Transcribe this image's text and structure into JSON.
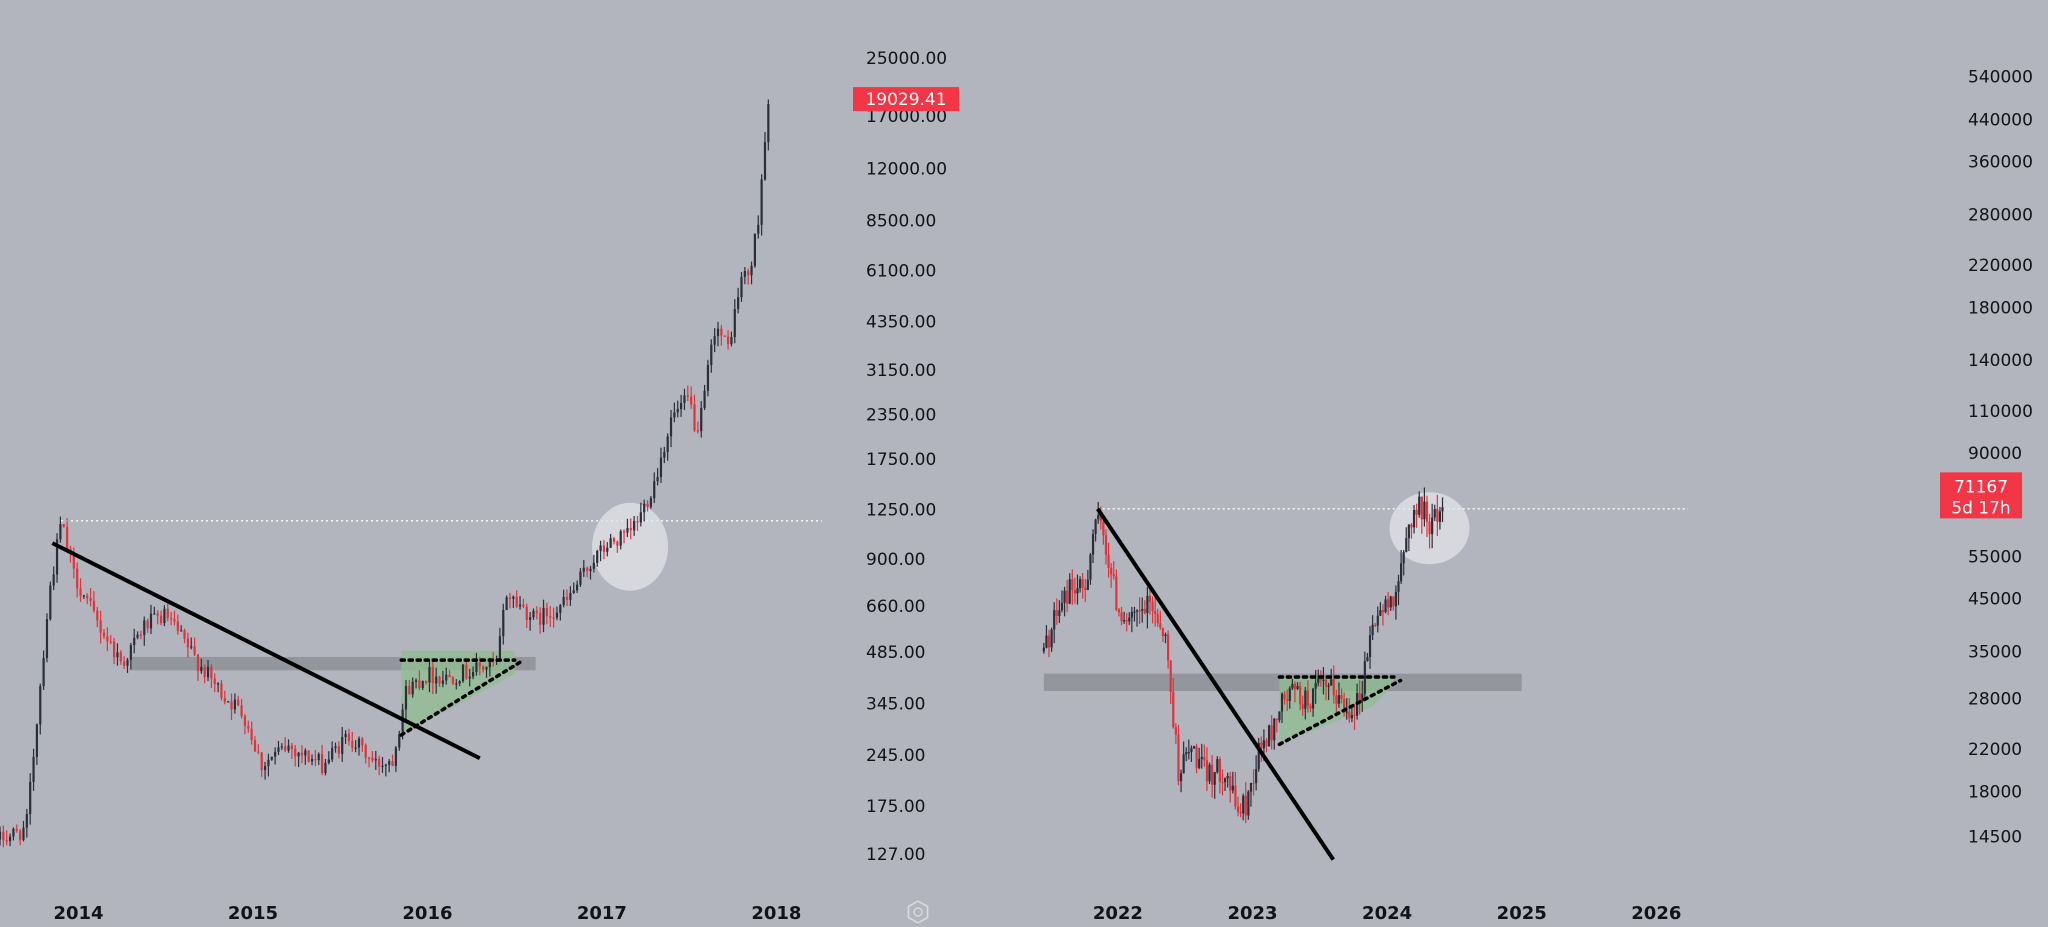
{
  "colors": {
    "background": "#b2b5be",
    "up_candle": "#2a2e39",
    "down_candle": "#e0333a",
    "price_tag": "#f23645",
    "pattern_fill": "#8fbf8f",
    "zone": "#8e9199",
    "highlight": "#e2e4e8"
  },
  "chart_data": [
    {
      "type": "candlestick",
      "scale": "log",
      "x_ticks": [
        "2014",
        "2015",
        "2016",
        "2017",
        "2018"
      ],
      "y_ticks": [
        "25000.00",
        "17000.00",
        "12000.00",
        "8500.00",
        "6100.00",
        "4350.00",
        "3150.00",
        "2350.00",
        "1750.00",
        "1250.00",
        "900.00",
        "660.00",
        "485.00",
        "345.00",
        "245.00",
        "175.00",
        "127.00"
      ],
      "last_price": "19029.41",
      "x_range": [
        2013.55,
        2018.25
      ],
      "y_range": [
        107,
        30500
      ],
      "prev_high": 1160,
      "zone": [
        430,
        470
      ],
      "anchors": [
        [
          2013.55,
          140
        ],
        [
          2013.7,
          150
        ],
        [
          2013.83,
          700
        ],
        [
          2013.9,
          1150
        ],
        [
          2013.97,
          820
        ],
        [
          2014.1,
          600
        ],
        [
          2014.25,
          450
        ],
        [
          2014.38,
          580
        ],
        [
          2014.5,
          620
        ],
        [
          2014.65,
          480
        ],
        [
          2014.8,
          380
        ],
        [
          2014.95,
          320
        ],
        [
          2015.05,
          230
        ],
        [
          2015.2,
          260
        ],
        [
          2015.4,
          230
        ],
        [
          2015.55,
          280
        ],
        [
          2015.7,
          230
        ],
        [
          2015.8,
          240
        ],
        [
          2015.88,
          380
        ],
        [
          2016.0,
          420
        ],
        [
          2016.1,
          410
        ],
        [
          2016.25,
          430
        ],
        [
          2016.4,
          450
        ],
        [
          2016.45,
          720
        ],
        [
          2016.55,
          650
        ],
        [
          2016.62,
          600
        ],
        [
          2016.8,
          680
        ],
        [
          2016.95,
          900
        ],
        [
          2017.05,
          1000
        ],
        [
          2017.15,
          1050
        ],
        [
          2017.22,
          1200
        ],
        [
          2017.3,
          1500
        ],
        [
          2017.4,
          2300
        ],
        [
          2017.5,
          2600
        ],
        [
          2017.55,
          2000
        ],
        [
          2017.65,
          4300
        ],
        [
          2017.72,
          3600
        ],
        [
          2017.8,
          5800
        ],
        [
          2017.85,
          6000
        ],
        [
          2017.9,
          9000
        ],
        [
          2017.93,
          14000
        ],
        [
          2017.96,
          19029
        ]
      ],
      "trendline": [
        [
          2013.85,
          1000
        ],
        [
          2016.3,
          240
        ]
      ],
      "triangle_top": [
        [
          2015.85,
          460
        ],
        [
          2016.5,
          460
        ]
      ],
      "triangle_bottom": [
        [
          2015.85,
          280
        ],
        [
          2016.55,
          460
        ]
      ],
      "pattern_points": [
        [
          2015.85,
          280
        ],
        [
          2015.85,
          490
        ],
        [
          2016.5,
          490
        ],
        [
          2016.5,
          420
        ]
      ],
      "highlight_center": [
        2017.15,
        1100
      ]
    },
    {
      "type": "candlestick",
      "scale": "log",
      "x_ticks": [
        "2022",
        "2023",
        "2024",
        "2025",
        "2026"
      ],
      "y_ticks": [
        "540000",
        "440000",
        "360000",
        "280000",
        "220000",
        "180000",
        "140000",
        "110000",
        "90000",
        "55000",
        "45000",
        "35000",
        "28000",
        "22000",
        "18000",
        "14500"
      ],
      "last_price": "71167",
      "countdown": "5d 17h",
      "x_range": [
        2021.05,
        2026.25
      ],
      "y_range": [
        11800,
        680000
      ],
      "prev_high": 69000,
      "zone": [
        29000,
        31500
      ],
      "anchors": [
        [
          2021.45,
          35000
        ],
        [
          2021.55,
          42000
        ],
        [
          2021.65,
          48000
        ],
        [
          2021.75,
          46000
        ],
        [
          2021.83,
          66000
        ],
        [
          2021.9,
          60000
        ],
        [
          2022.0,
          43000
        ],
        [
          2022.1,
          40000
        ],
        [
          2022.25,
          44000
        ],
        [
          2022.35,
          38000
        ],
        [
          2022.45,
          20000
        ],
        [
          2022.55,
          22000
        ],
        [
          2022.65,
          19500
        ],
        [
          2022.8,
          20000
        ],
        [
          2022.88,
          16500
        ],
        [
          2022.95,
          16800
        ],
        [
          2023.05,
          22000
        ],
        [
          2023.15,
          24000
        ],
        [
          2023.2,
          27000
        ],
        [
          2023.3,
          29000
        ],
        [
          2023.4,
          27500
        ],
        [
          2023.5,
          29500
        ],
        [
          2023.6,
          29000
        ],
        [
          2023.7,
          26500
        ],
        [
          2023.8,
          28000
        ],
        [
          2023.85,
          35000
        ],
        [
          2023.92,
          42000
        ],
        [
          2024.0,
          43000
        ],
        [
          2024.1,
          50000
        ],
        [
          2024.17,
          66000
        ],
        [
          2024.25,
          70000
        ],
        [
          2024.33,
          64000
        ],
        [
          2024.38,
          68000
        ],
        [
          2024.42,
          71167
        ]
      ],
      "trendline": [
        [
          2021.85,
          69000
        ],
        [
          2023.6,
          13000
        ]
      ],
      "triangle_top": [
        [
          2023.2,
          31000
        ],
        [
          2024.05,
          31000
        ]
      ],
      "triangle_bottom": [
        [
          2023.2,
          22500
        ],
        [
          2024.1,
          30500
        ]
      ],
      "pattern_points": [
        [
          2023.2,
          22500
        ],
        [
          2023.2,
          31000
        ],
        [
          2024.05,
          31000
        ],
        [
          2024.05,
          30000
        ],
        [
          2023.9,
          27000
        ]
      ],
      "highlight_center": [
        2024.3,
        66000
      ]
    }
  ]
}
